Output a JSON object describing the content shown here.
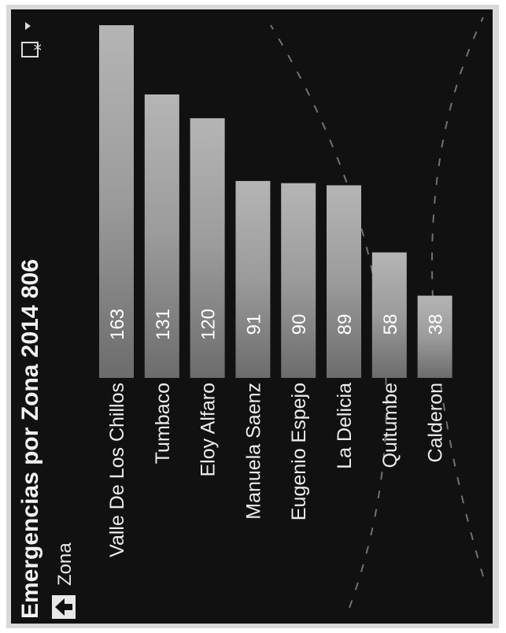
{
  "title": "Emergencias por Zona 2014 806",
  "drill": {
    "label": "Zona",
    "icon": "up-arrow-icon"
  },
  "menu_icon": "clear-filter-icon",
  "chart_data": {
    "type": "bar",
    "orientation": "horizontal",
    "title": "Emergencias por Zona 2014 806",
    "xlabel": "",
    "ylabel": "Zona",
    "categories": [
      "Valle De Los Chillos",
      "Tumbaco",
      "Eloy Alfaro",
      "Manuela Saenz",
      "Eugenio Espejo",
      "La Delicia",
      "Quitumbe",
      "Calderon"
    ],
    "values": [
      163,
      131,
      120,
      91,
      90,
      89,
      58,
      38
    ],
    "value_labels": [
      "163",
      "131",
      "120",
      "91",
      "90",
      "89",
      "58",
      "38"
    ],
    "xlim": [
      0,
      163
    ],
    "grid": false,
    "legend": "none",
    "bar_color": "#8a8a8a"
  }
}
